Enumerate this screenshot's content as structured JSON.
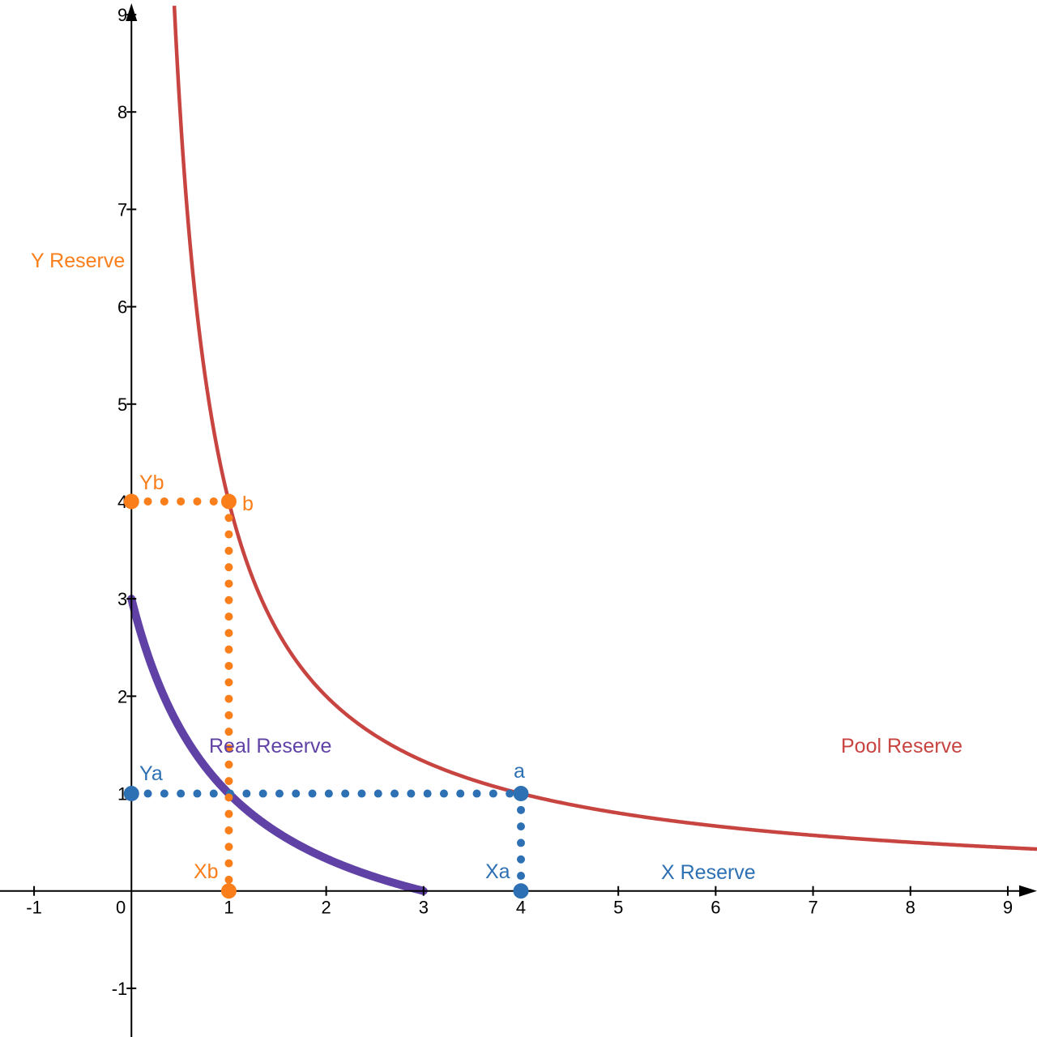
{
  "chart_data": {
    "type": "line",
    "title": "",
    "xlim": [
      -1.35,
      9.3
    ],
    "ylim": [
      -1.5,
      9.15
    ],
    "grid": false,
    "x_ticks": [
      -1,
      0,
      1,
      2,
      3,
      4,
      5,
      6,
      7,
      8,
      9
    ],
    "y_ticks": [
      -1,
      1,
      2,
      3,
      4,
      5,
      6,
      7,
      8,
      9
    ],
    "x_tick_labels": [
      "-1",
      "0",
      "1",
      "2",
      "3",
      "4",
      "5",
      "6",
      "7",
      "8",
      "9"
    ],
    "y_tick_labels": [
      "-1",
      "1",
      "2",
      "3",
      "4",
      "5",
      "6",
      "7",
      "8",
      "9"
    ],
    "colors": {
      "pool": "#c74440",
      "real": "#6042a6",
      "a": "#2d70b3",
      "b": "#fa7e19",
      "axis": "#000000"
    },
    "curves": {
      "pool": {
        "label": "Pool Reserve",
        "equation": "y = 4 / x",
        "x_range": [
          0.44,
          9.3
        ]
      },
      "real": {
        "label": "Real Reserve",
        "equation": "(x + 1)(y + 1) = 4",
        "x_range": [
          0,
          3
        ]
      }
    },
    "points": {
      "a": {
        "label": "a",
        "x": 4,
        "y": 1
      },
      "b": {
        "label": "b",
        "x": 1,
        "y": 4
      },
      "Xa": {
        "label": "Xa",
        "x": 4,
        "y": 0
      },
      "Ya": {
        "label": "Ya",
        "x": 0,
        "y": 1
      },
      "Xb": {
        "label": "Xb",
        "x": 1,
        "y": 0
      },
      "Yb": {
        "label": "Yb",
        "x": 0,
        "y": 4
      }
    },
    "axis_labels": {
      "x": "X Reserve",
      "y": "Y Reserve"
    }
  }
}
